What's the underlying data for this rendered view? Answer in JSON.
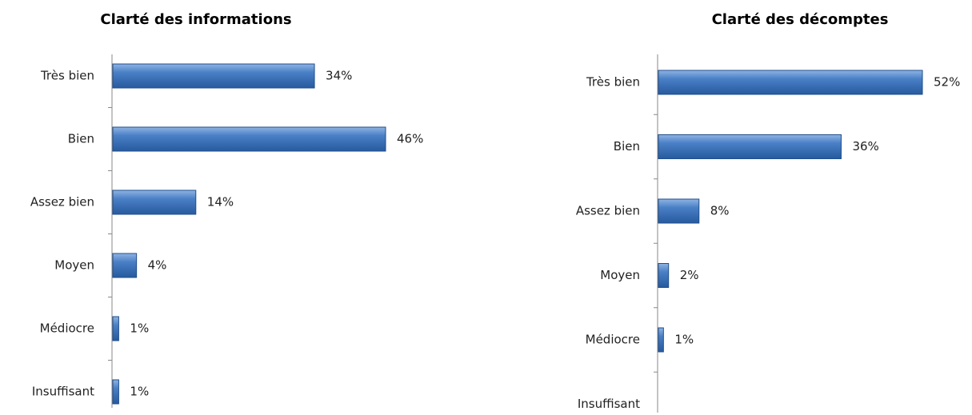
{
  "chart_data": [
    {
      "type": "bar",
      "orientation": "horizontal",
      "title": "Clarté des informations",
      "categories": [
        "Très bien",
        "Bien",
        "Assez bien",
        "Moyen",
        "Médiocre",
        "Insuffisant"
      ],
      "values": [
        34,
        46,
        14,
        4,
        1,
        1
      ],
      "value_labels": [
        "34%",
        "46%",
        "14%",
        "4%",
        "1%",
        "1%"
      ],
      "color": "#3f75bd"
    },
    {
      "type": "bar",
      "orientation": "horizontal",
      "title": "Clarté des décomptes",
      "categories": [
        "Très bien",
        "Bien",
        "Assez bien",
        "Moyen",
        "Médiocre",
        "Insuffisant"
      ],
      "values": [
        52,
        36,
        8,
        2,
        1,
        null
      ],
      "value_labels": [
        "52%",
        "36%",
        "8%",
        "2%",
        "1%",
        null
      ],
      "color": "#3f75bd"
    }
  ]
}
